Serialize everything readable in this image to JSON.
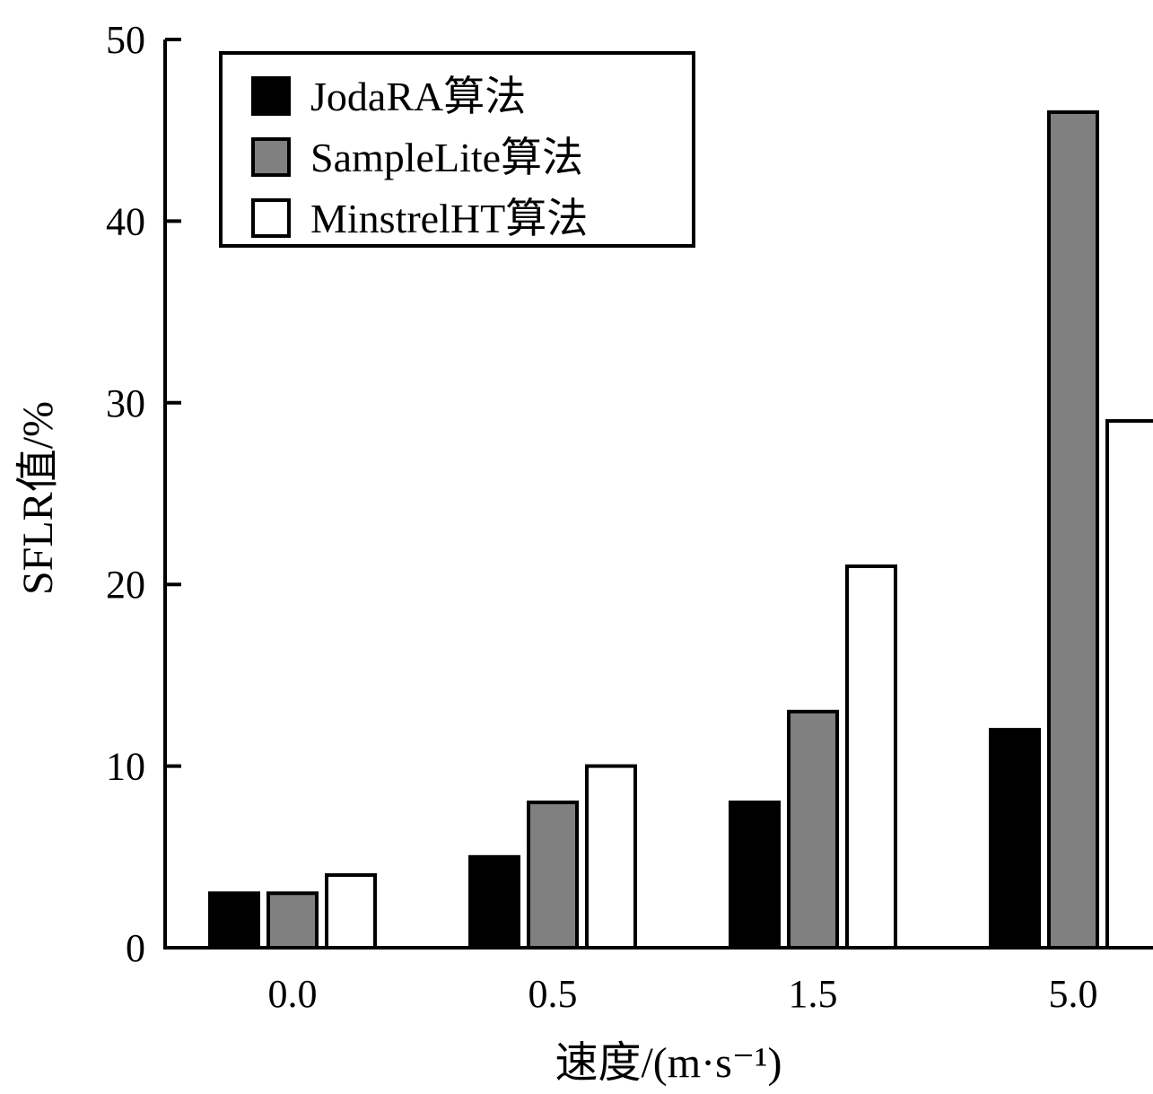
{
  "chart_data": {
    "type": "bar",
    "categories": [
      "0.0",
      "0.5",
      "1.5",
      "5.0"
    ],
    "series": [
      {
        "name": "JodaRA算法",
        "values": [
          3,
          5,
          8,
          12
        ],
        "color": "#000000"
      },
      {
        "name": "SampleLite算法",
        "values": [
          3,
          8,
          13,
          46
        ],
        "color": "#808080"
      },
      {
        "name": "MinstrelHT算法",
        "values": [
          4,
          10,
          21,
          29
        ],
        "color": "#ffffff"
      }
    ],
    "xlabel": "速度/(m·s⁻¹)",
    "ylabel": "SFLR值/%",
    "ylim": [
      0,
      50
    ],
    "yticks": [
      "0",
      "10",
      "20",
      "30",
      "40",
      "50"
    ],
    "grid": false,
    "legend_position": "top-left"
  }
}
